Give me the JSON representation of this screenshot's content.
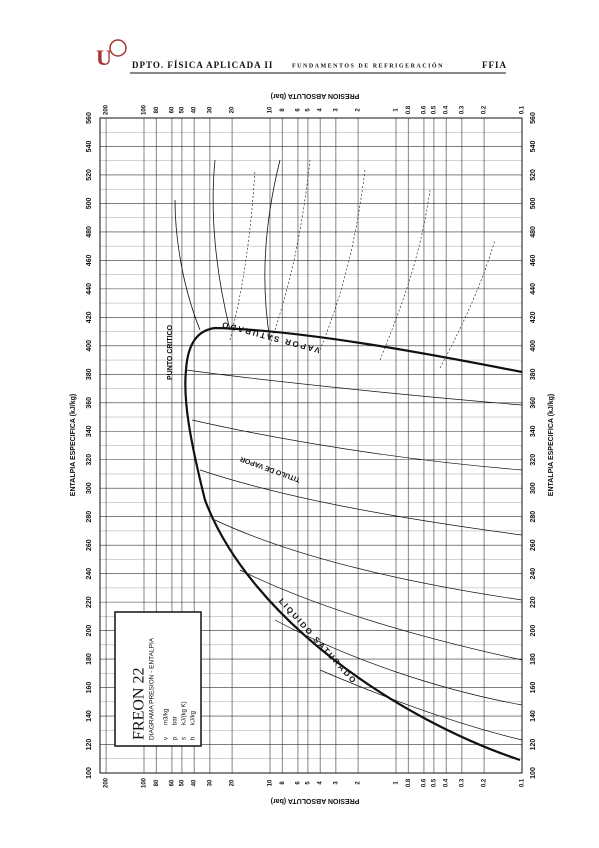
{
  "header": {
    "dept": "DPTO. FÍSICA APLICADA II",
    "course": "FUNDAMENTOS DE REFRIGERACIÓN",
    "school": "FFIA"
  },
  "diagram": {
    "pressure_axis_title": "PRESION ABSOLUTA (bar)",
    "enthalpy_axis_title": "ENTALPIA ESPECIFICA (kJ/kg)",
    "enthalpy_ticks": [
      100,
      120,
      140,
      160,
      180,
      200,
      220,
      240,
      260,
      280,
      300,
      320,
      340,
      360,
      380,
      400,
      420,
      440,
      460,
      480,
      500,
      520,
      540,
      560
    ],
    "pressure_ticks": [
      200,
      100,
      80,
      60,
      50,
      40,
      30,
      20,
      10,
      8,
      6,
      5,
      4,
      3,
      2,
      1,
      0.8,
      0.6,
      0.5,
      0.4,
      0.3,
      0.2,
      0.1
    ],
    "labels": {
      "critical": "PUNTO CRITICO",
      "sat_vapor": "VAPOR SATURADO",
      "sat_liquid": "LIQUIDO SATURADO",
      "quality": "TITULO DE VAPOR"
    },
    "legend": {
      "title": "FREON 22",
      "subtitle": "DIAGRAMA PRESION - ENTALPIA",
      "units": [
        [
          "v",
          "m3/kg"
        ],
        [
          "p",
          "bar"
        ],
        [
          "s",
          "kJ/(kg K)"
        ],
        [
          "h",
          "kJ/kg"
        ]
      ]
    }
  }
}
